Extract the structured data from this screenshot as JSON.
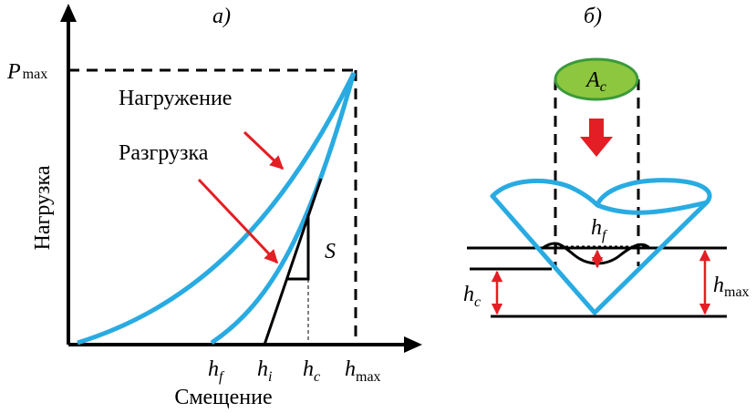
{
  "panel_a": {
    "label": "а)",
    "y_axis_title": "Нагрузка",
    "x_axis_title": "Смещение",
    "p_max": {
      "symbol": "P",
      "subscript": "max"
    },
    "loading": "Нагружение",
    "unloading": "Разгрузка",
    "stiffness": "S",
    "x_marks": [
      {
        "symbol": "h",
        "subscript": "f"
      },
      {
        "symbol": "h",
        "subscript": "i"
      },
      {
        "symbol": "h",
        "subscript": "c"
      },
      {
        "symbol": "h",
        "subscript": "max"
      }
    ]
  },
  "panel_b": {
    "label": "б)",
    "area": {
      "symbol": "A",
      "subscript": "c"
    },
    "h_f": {
      "symbol": "h",
      "subscript": "f"
    },
    "h_c": {
      "symbol": "h",
      "subscript": "c"
    },
    "h_max": {
      "symbol": "h",
      "subscript": "max"
    }
  }
}
